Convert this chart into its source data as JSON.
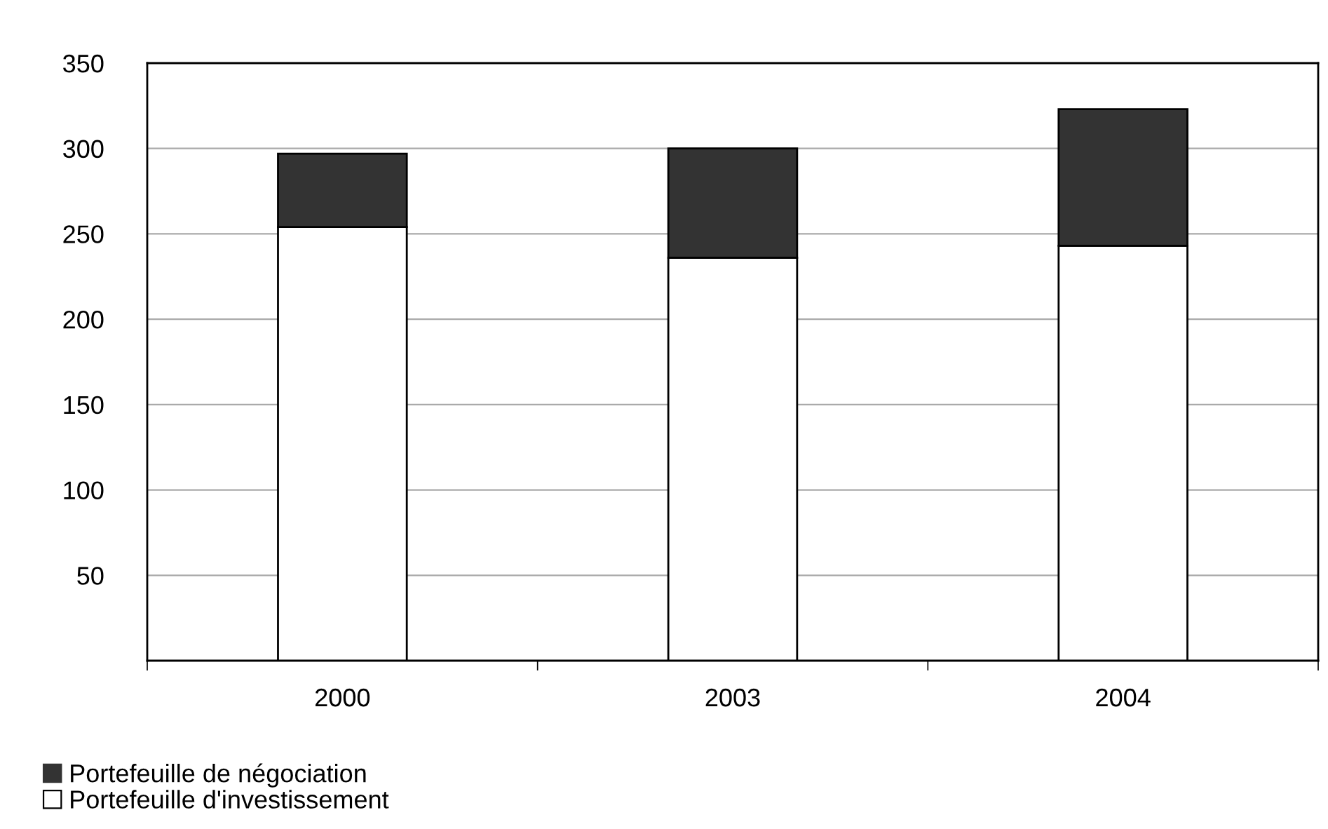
{
  "chart_data": {
    "type": "bar",
    "stacked": true,
    "categories": [
      "2000",
      "2003",
      "2004"
    ],
    "series": [
      {
        "name": "Portefeuille d'investissement",
        "color": "#ffffff",
        "values": [
          254,
          236,
          243
        ]
      },
      {
        "name": "Portefeuille de négociation",
        "color": "#333333",
        "values": [
          43,
          64,
          80
        ]
      }
    ],
    "ylim": [
      0,
      350
    ],
    "yticks": [
      {
        "value": 0,
        "label": null
      },
      50,
      100,
      150,
      200,
      250,
      300,
      350
    ],
    "grid": "y",
    "legend": "bottom left"
  }
}
